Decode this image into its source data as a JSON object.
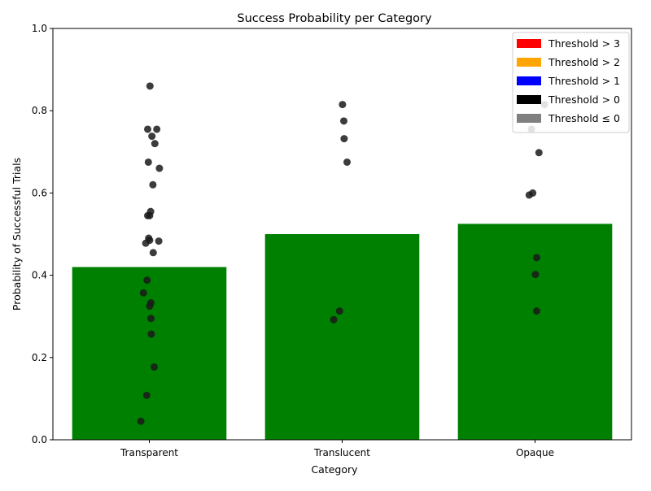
{
  "chart_data": {
    "type": "bar",
    "title": "Success Probability per Category",
    "xlabel": "Category",
    "ylabel": "Probability of Successful Trials",
    "ylim": [
      0,
      1.0
    ],
    "yticks": [
      0.0,
      0.2,
      0.4,
      0.6,
      0.8,
      1.0
    ],
    "ytick_labels": [
      "0.0",
      "0.2",
      "0.4",
      "0.6",
      "0.8",
      "1.0"
    ],
    "categories": [
      "Transparent",
      "Translucent",
      "Opaque"
    ],
    "values": [
      0.42,
      0.5,
      0.525
    ],
    "bar_color": "#008000",
    "point_color": "#1a1a1a",
    "grid": false,
    "points": [
      [
        0.86,
        0.755,
        0.755,
        0.738,
        0.72,
        0.675,
        0.66,
        0.62,
        0.555,
        0.545,
        0.545,
        0.49,
        0.485,
        0.483,
        0.478,
        0.455,
        0.388,
        0.357,
        0.333,
        0.325,
        0.295,
        0.257,
        0.177,
        0.108,
        0.045
      ],
      [
        0.815,
        0.775,
        0.732,
        0.675,
        0.313,
        0.292
      ],
      [
        0.815,
        0.755,
        0.698,
        0.6,
        0.595,
        0.443,
        0.402,
        0.313
      ]
    ],
    "legend": {
      "placement": "top-right",
      "entries": [
        {
          "label": "Threshold > 3",
          "color": "#ff0000"
        },
        {
          "label": "Threshold > 2",
          "color": "#ffa500"
        },
        {
          "label": "Threshold > 1",
          "color": "#0000ff"
        },
        {
          "label": "Threshold > 0",
          "color": "#000000"
        },
        {
          "label": "Threshold ≤ 0",
          "color": "#808080"
        }
      ]
    }
  }
}
